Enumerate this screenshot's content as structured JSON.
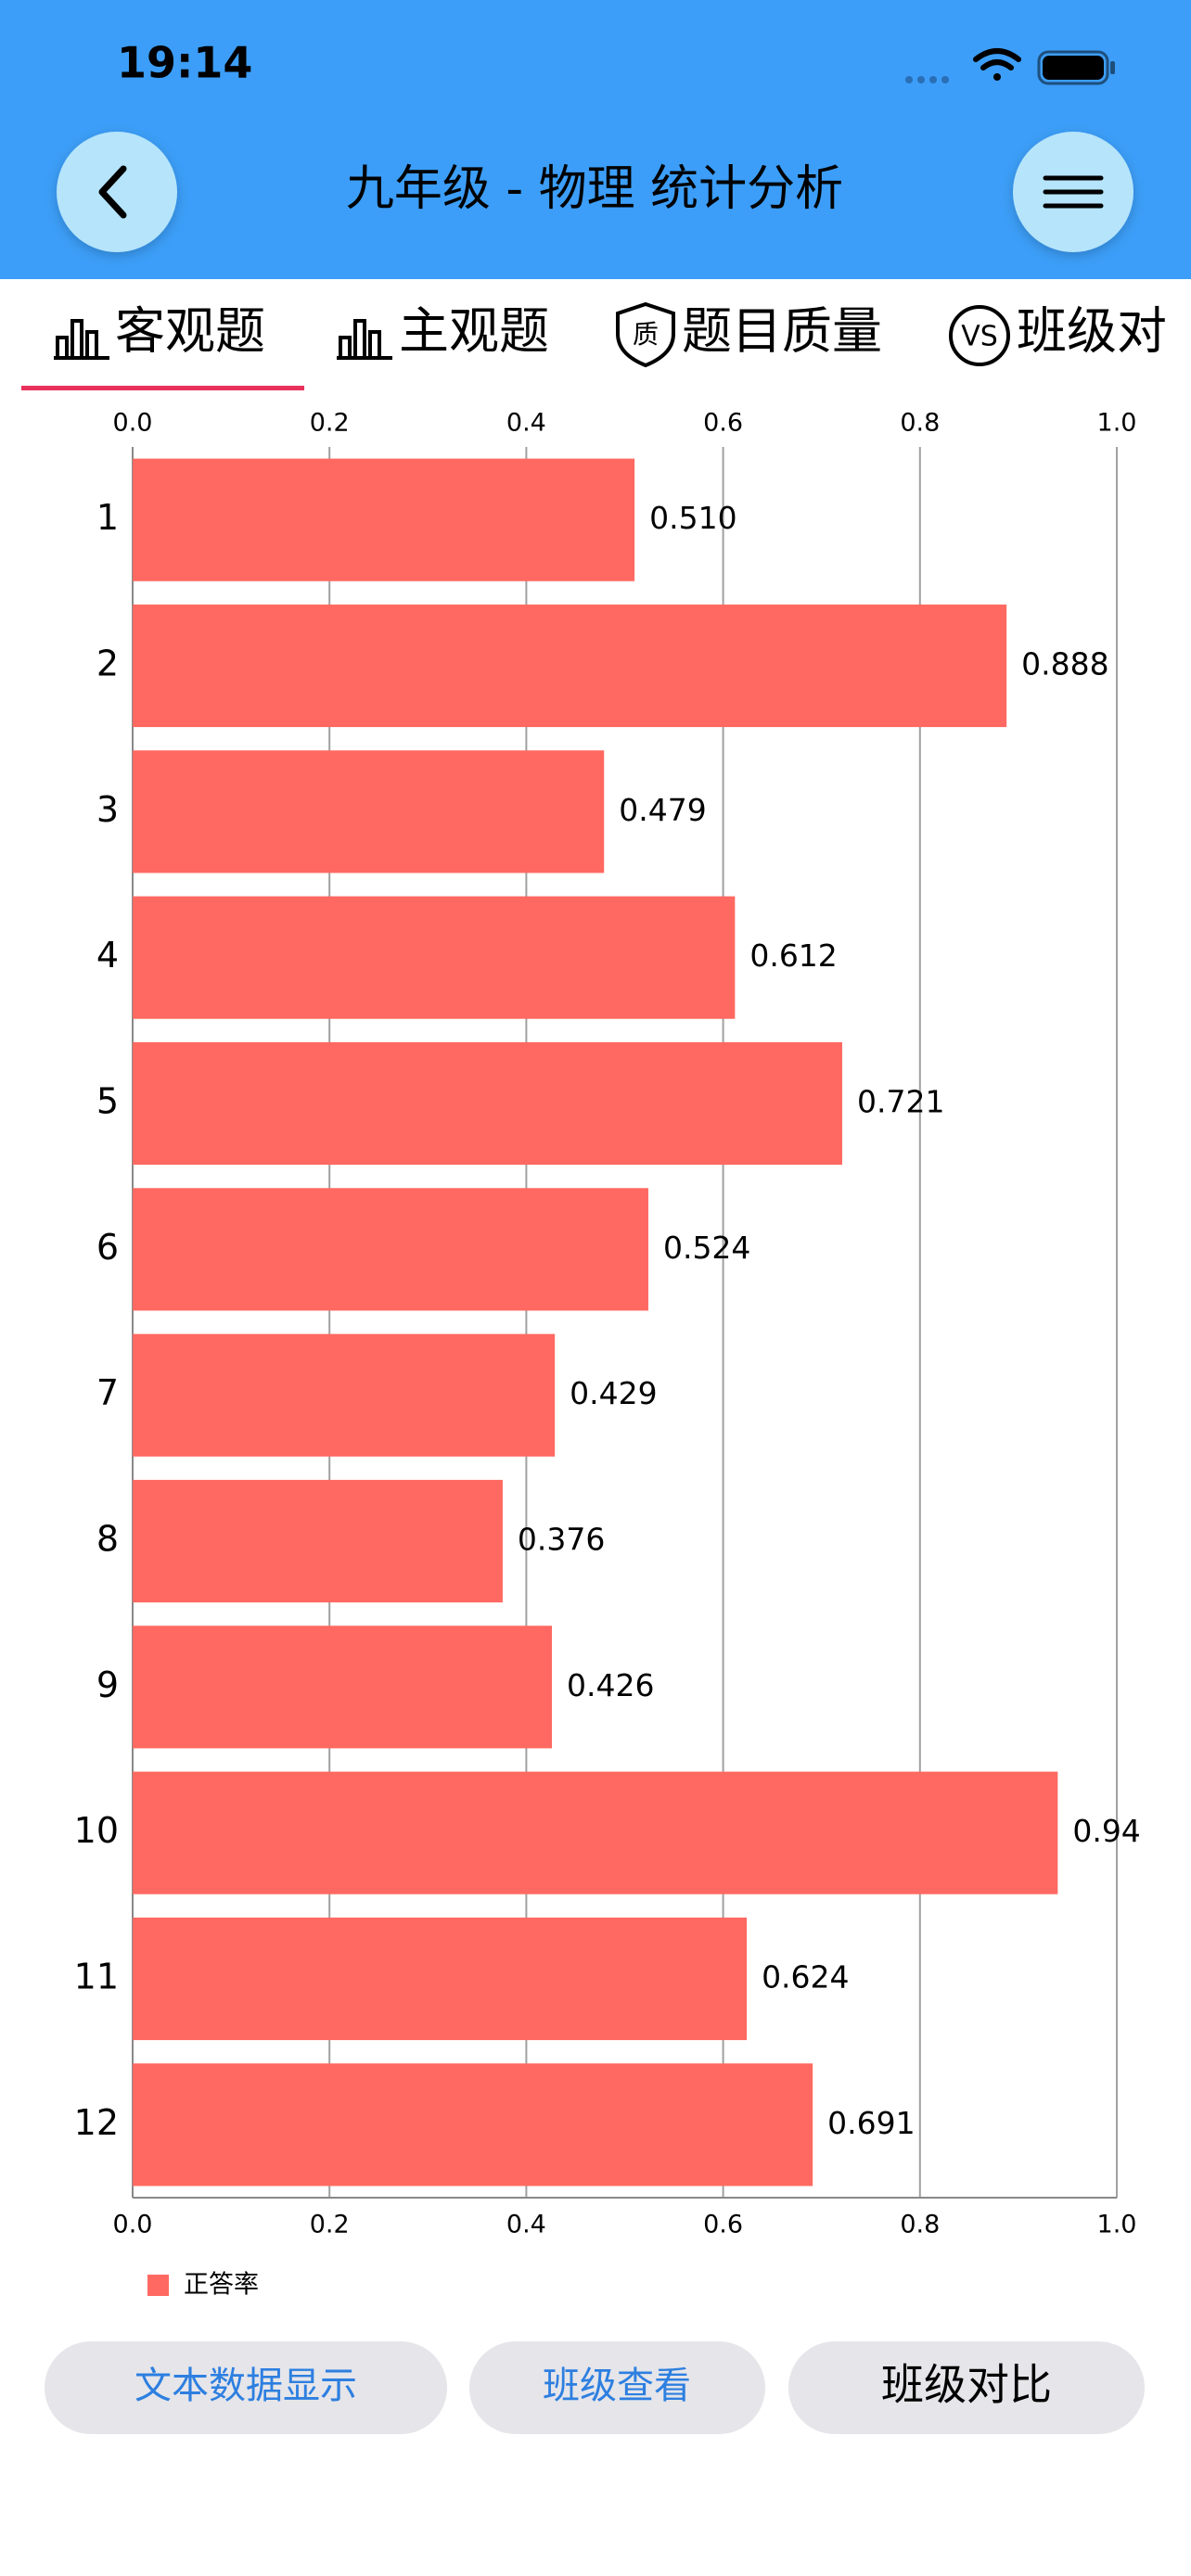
{
  "status_bar": {
    "time": "19:14"
  },
  "header": {
    "title": "九年级 - 物理 统计分析"
  },
  "tabs": [
    {
      "label": "客观题"
    },
    {
      "label": "主观题"
    },
    {
      "icon": "质",
      "label": "题目质量"
    },
    {
      "icon": "VS",
      "label": "班级对"
    }
  ],
  "chart_data": {
    "type": "bar",
    "orientation": "horizontal",
    "categories": [
      "1",
      "2",
      "3",
      "4",
      "5",
      "6",
      "7",
      "8",
      "9",
      "10",
      "11",
      "12"
    ],
    "series": [
      {
        "name": "正答率",
        "color": "#ff6961",
        "values": [
          0.51,
          0.888,
          0.479,
          0.612,
          0.721,
          0.524,
          0.429,
          0.376,
          0.426,
          0.94,
          0.624,
          0.691
        ],
        "value_labels": [
          "0.510",
          "0.888",
          "0.479",
          "0.612",
          "0.721",
          "0.524",
          "0.429",
          "0.376",
          "0.426",
          "0.94",
          "0.624",
          "0.691"
        ]
      }
    ],
    "xlim": [
      0,
      1
    ],
    "xticks": [
      {
        "value": 0,
        "label": "0.0"
      },
      0.2,
      0.4,
      0.6,
      0.8,
      {
        "value": 1,
        "label": "1.0"
      }
    ],
    "grid": true,
    "legend": "bottom-left"
  },
  "buttons": [
    "文本数据显示",
    "班级查看",
    "班级对比"
  ]
}
